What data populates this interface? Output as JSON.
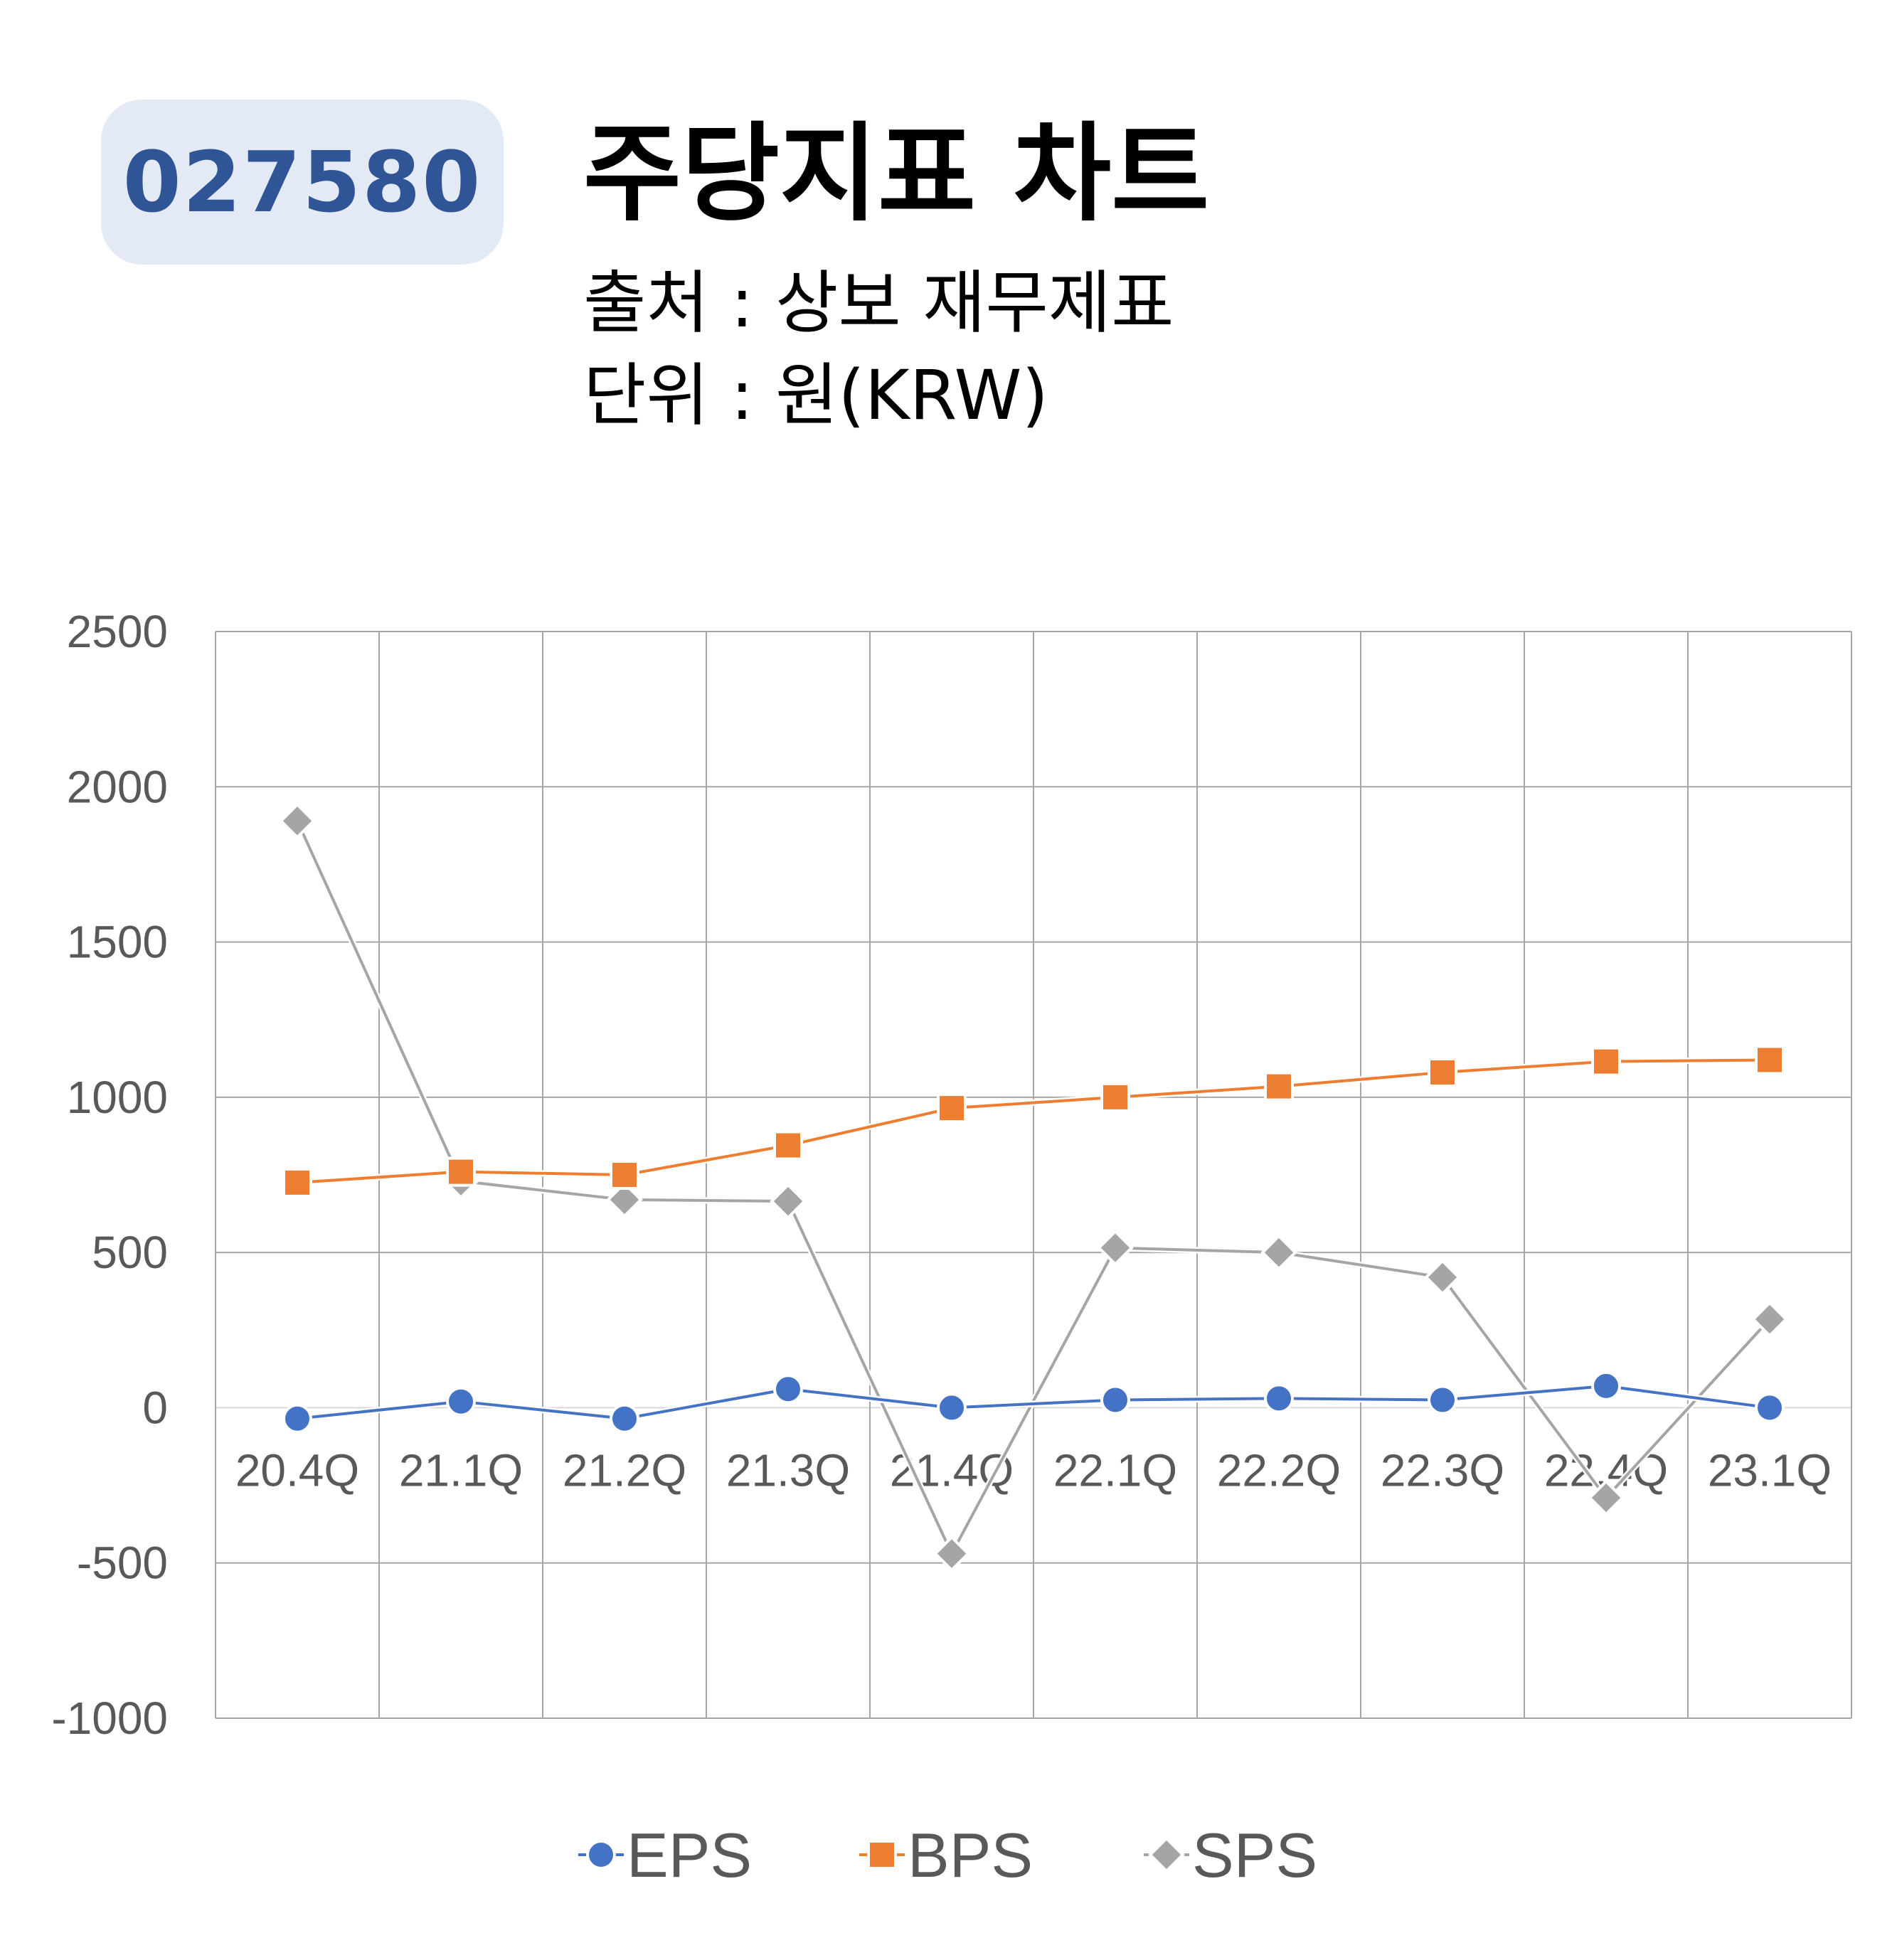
{
  "header": {
    "code": "027580",
    "title": "주당지표 차트",
    "source": "출처 : 상보 재무제표",
    "unit": "단위 : 원(KRW)"
  },
  "colors": {
    "EPS": "#4472c4",
    "BPS": "#ed7d31",
    "SPS": "#a5a5a5",
    "grid": "#a6a6a6",
    "badge_bg": "#e3e9f5",
    "badge_text": "#2f5597"
  },
  "chart_data": {
    "type": "line",
    "title": "",
    "xlabel": "",
    "ylabel": "",
    "categories": [
      "20.4Q",
      "21.1Q",
      "21.2Q",
      "21.3Q",
      "21.4Q",
      "22.1Q",
      "22.2Q",
      "22.3Q",
      "22.4Q",
      "23.1Q"
    ],
    "ylim": [
      -1000,
      2500
    ],
    "yticks": [
      2500,
      2000,
      1500,
      1000,
      500,
      0,
      -500,
      -1000
    ],
    "grid": true,
    "legend": "bottom",
    "series": [
      {
        "name": "EPS",
        "marker": "circle",
        "values": [
          -35,
          20,
          -35,
          60,
          0,
          25,
          30,
          25,
          70,
          0
        ]
      },
      {
        "name": "BPS",
        "marker": "square",
        "values": [
          725,
          760,
          750,
          845,
          965,
          1000,
          1035,
          1080,
          1115,
          1120
        ]
      },
      {
        "name": "SPS",
        "marker": "diamond",
        "values": [
          1890,
          730,
          670,
          665,
          -470,
          515,
          500,
          420,
          -290,
          285
        ]
      }
    ]
  }
}
